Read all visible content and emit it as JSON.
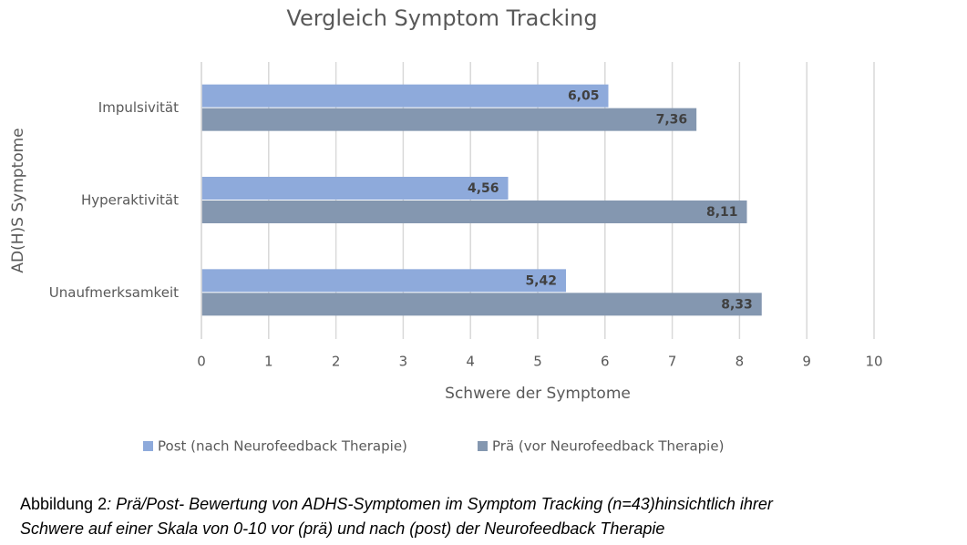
{
  "chart_data": {
    "type": "bar",
    "orientation": "horizontal",
    "title": "Vergleich Symptom Tracking",
    "x_label": "Schwere der Symptome",
    "y_label": "AD(H)S Symptome",
    "categories": [
      "Impulsivität",
      "Hyperaktivität",
      "Unaufmerksamkeit"
    ],
    "series": [
      {
        "name": "Post (nach Neurofeedback Therapie)",
        "color": "#8eaadb",
        "values": [
          6.05,
          4.56,
          5.42
        ],
        "value_labels": [
          "6,05",
          "4,56",
          "5,42"
        ]
      },
      {
        "name": "Prä (vor Neurofeedback Therapie)",
        "color": "#8497b0",
        "values": [
          7.36,
          8.11,
          8.33
        ],
        "value_labels": [
          "7,36",
          "8,11",
          "8,33"
        ]
      }
    ],
    "xlim": [
      0,
      10
    ],
    "xticks": [
      0,
      1,
      2,
      3,
      4,
      5,
      6,
      7,
      8,
      9,
      10
    ],
    "grid": true,
    "legend": "bottom"
  },
  "caption": {
    "label": "Abbildung 2",
    "lines": [
      ": Prä/Post- Bewertung von ADHS-Symptomen im Symptom Tracking (n=43)hinsichtlich ihrer",
      "Schwere auf einer Skala von 0-10  vor (prä) und nach (post) der Neurofeedback Therapie"
    ]
  }
}
